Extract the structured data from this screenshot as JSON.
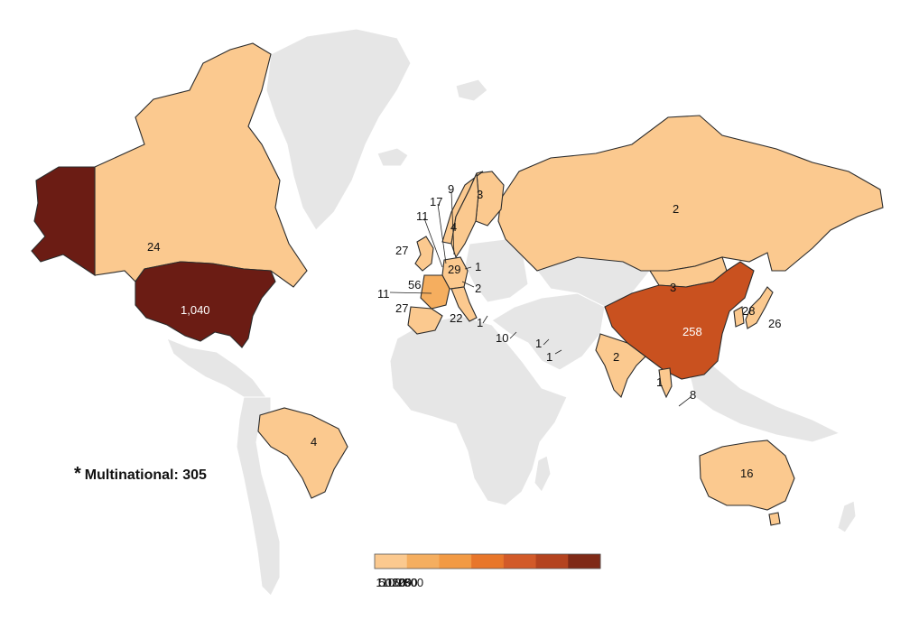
{
  "scale": {
    "colors": [
      "#fbc98f",
      "#f5ae5f",
      "#f29a44",
      "#e8762a",
      "#d25a29",
      "#b4431f",
      "#7f2a17"
    ],
    "tick_labels": [
      "1",
      "50",
      "100",
      "150",
      "200",
      "250",
      "300"
    ]
  },
  "note": {
    "symbol": "*",
    "text": "Multinational: 305"
  },
  "countries": {
    "usa": {
      "label": "1,040",
      "color": "#6b1c14"
    },
    "alaska": {
      "color": "#6b1c14"
    },
    "canada": {
      "label": "24",
      "color": "#fbc98f"
    },
    "brazil": {
      "label": "4",
      "color": "#fbc98f"
    },
    "russia": {
      "label": "2",
      "color": "#fbc98f"
    },
    "china": {
      "label": "258",
      "color": "#c9511f"
    },
    "mongolia": {
      "label": "3",
      "color": "#fbc98f"
    },
    "india": {
      "label": "2",
      "color": "#fbc98f"
    },
    "australia": {
      "label": "16",
      "color": "#fbc98f"
    },
    "japan": {
      "label": "26",
      "color": "#fbc98f"
    },
    "korea": {
      "label": "28",
      "color": "#fbc98f"
    },
    "sweden": {
      "label": "4",
      "color": "#fbc98f"
    },
    "finland": {
      "label": "3",
      "color": "#fbc98f"
    },
    "norway": {
      "color": "#fbc98f"
    },
    "uk": {
      "label": "27",
      "color": "#fbc98f"
    },
    "france": {
      "label": "56",
      "color": "#f5ae5f"
    },
    "spain": {
      "label": "27",
      "color": "#fbc98f"
    },
    "germany": {
      "label": "29",
      "color": "#fbc98f"
    },
    "italy": {
      "label": "22",
      "color": "#fbc98f"
    },
    "thailand": {
      "label": "1",
      "color": "#fbc98f"
    }
  },
  "labels": {
    "denmark": "9",
    "netherlands": "17",
    "belgium": "11",
    "poland": "1",
    "austria": "2",
    "portugal": "11",
    "greece": "1",
    "israel": "10",
    "saudi": "1",
    "uae": "1",
    "singapore": "8"
  }
}
